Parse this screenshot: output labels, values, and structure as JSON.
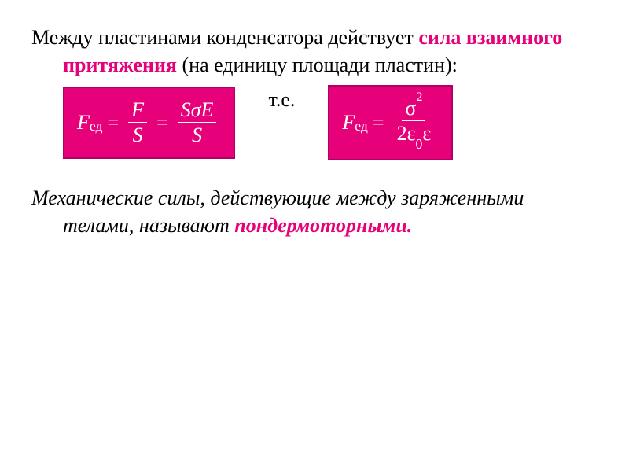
{
  "intro": {
    "pre": "Между пластинами конденсатора действует ",
    "highlight": "сила взаимного притяжения",
    "post": " (на единицу площади пластин):"
  },
  "formula1": {
    "F": "F",
    "ed_sub": "ед",
    "eq": "=",
    "top1": "F",
    "bot1": "S",
    "top2": "SσE",
    "bot2": "S"
  },
  "ie": "т.е.",
  "formula2": {
    "F": "F",
    "ed_sub": "ед",
    "eq": "=",
    "sigma": "σ",
    "power2": "2",
    "den_pre": "2ε",
    "eps0_sub": "0",
    "den_post": "ε"
  },
  "mech": {
    "line": "Механические силы, действующие между заряженными телами, называют ",
    "ponder": "пондермоторными."
  },
  "colors": {
    "highlight": "#e6007a",
    "box_bg": "#e6007a",
    "box_border": "#b00060",
    "box_text": "#ffffff",
    "text": "#000000",
    "background": "#ffffff"
  },
  "typography": {
    "body_fontsize": 26,
    "formula_fontsize": 26,
    "font_family": "Georgia / Times New Roman serif"
  }
}
